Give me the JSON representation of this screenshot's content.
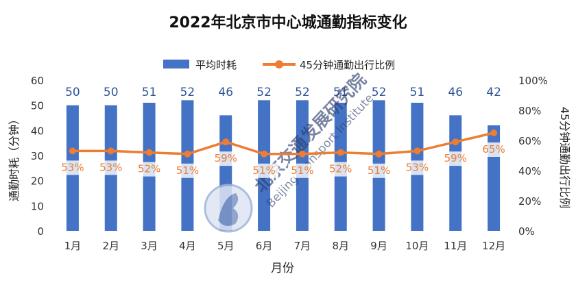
{
  "chart_data": {
    "type": "bar+line",
    "title": "2022年北京市中心城通勤指标变化",
    "categories": [
      "1月",
      "2月",
      "3月",
      "4月",
      "5月",
      "6月",
      "7月",
      "8月",
      "9月",
      "10月",
      "11月",
      "12月"
    ],
    "xlabel": "月份",
    "ylabel_left": "通勤时耗（分钟）",
    "ylabel_right": "45分钟通勤出行比例",
    "y_left": {
      "min": 0,
      "max": 60,
      "ticks": [
        "0",
        "10",
        "20",
        "30",
        "40",
        "50",
        "60"
      ]
    },
    "y_right": {
      "min": 0,
      "max": 100,
      "ticks": [
        "0%",
        "20%",
        "40%",
        "60%",
        "80%",
        "100%"
      ]
    },
    "legend_position": "top",
    "series": [
      {
        "name": "平均时耗",
        "kind": "bar",
        "axis": "left",
        "color": "#4472C4",
        "values": [
          50,
          50,
          51,
          52,
          46,
          52,
          52,
          51,
          52,
          51,
          46,
          42
        ],
        "labels": [
          "50",
          "50",
          "51",
          "52",
          "46",
          "52",
          "52",
          "51",
          "52",
          "51",
          "46",
          "42"
        ]
      },
      {
        "name": "45分钟通勤出行比例",
        "kind": "line",
        "axis": "right",
        "color": "#ED7D31",
        "values": [
          53,
          53,
          52,
          51,
          59,
          51,
          51,
          52,
          51,
          53,
          59,
          65
        ],
        "labels": [
          "53%",
          "53%",
          "52%",
          "51%",
          "59%",
          "51%",
          "51%",
          "52%",
          "51%",
          "53%",
          "59%",
          "65%"
        ]
      }
    ],
    "watermark": {
      "cn": "北京交通发展研究院",
      "en": "Beijing Transport Institute"
    }
  }
}
